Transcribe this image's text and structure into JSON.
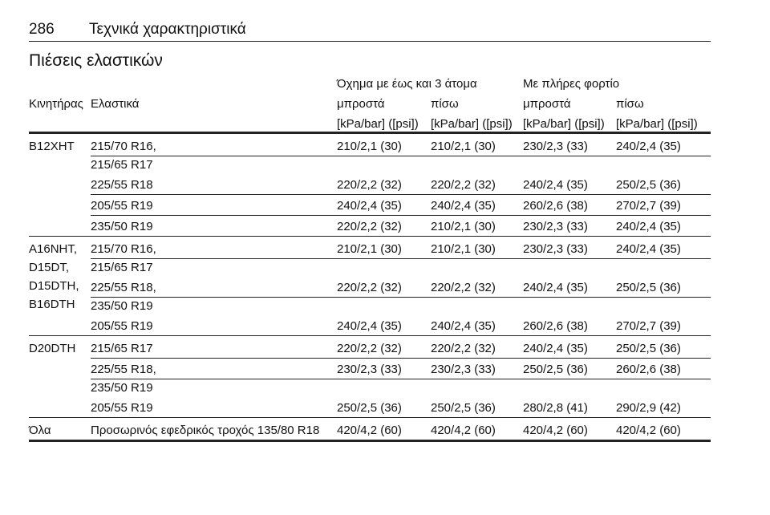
{
  "header": {
    "page": "286",
    "title": "Τεχνικά χαρακτηριστικά"
  },
  "section_title": "Πιέσεις ελαστικών",
  "table": {
    "group_headers": [
      "Όχημα με έως και 3 άτομα",
      "Με πλήρες φορτίο"
    ],
    "columns": [
      "Κινητήρας",
      "Ελαστικά",
      "μπροστά",
      "πίσω",
      "μπροστά",
      "πίσω"
    ],
    "units": [
      "[kPa/bar] ([psi])",
      "[kPa/bar] ([psi])",
      "[kPa/bar] ([psi])",
      "[kPa/bar] ([psi])"
    ],
    "groups": [
      {
        "engine": [
          "B12XHT"
        ],
        "rows": [
          {
            "tire": [
              "215/70 R16,",
              "215/65 R17"
            ],
            "values": [
              "210/2,1 (30)",
              "210/2,1 (30)",
              "230/2,3 (33)",
              "240/2,4 (35)"
            ]
          },
          {
            "tire": [
              "225/55 R18"
            ],
            "values": [
              "220/2,2 (32)",
              "220/2,2 (32)",
              "240/2,4 (35)",
              "250/2,5 (36)"
            ]
          },
          {
            "tire": [
              "205/55 R19"
            ],
            "values": [
              "240/2,4 (35)",
              "240/2,4 (35)",
              "260/2,6 (38)",
              "270/2,7 (39)"
            ]
          },
          {
            "tire": [
              "235/50 R19"
            ],
            "values": [
              "220/2,2 (32)",
              "210/2,1 (30)",
              "230/2,3 (33)",
              "240/2,4 (35)"
            ]
          }
        ]
      },
      {
        "engine": [
          "A16NHT,",
          "D15DT,",
          "D15DTH,",
          "B16DTH"
        ],
        "rows": [
          {
            "tire": [
              "215/70 R16,",
              "215/65 R17"
            ],
            "values": [
              "210/2,1 (30)",
              "210/2,1 (30)",
              "230/2,3 (33)",
              "240/2,4 (35)"
            ]
          },
          {
            "tire": [
              "225/55 R18,",
              "235/50 R19"
            ],
            "values": [
              "220/2,2 (32)",
              "220/2,2 (32)",
              "240/2,4 (35)",
              "250/2,5 (36)"
            ]
          },
          {
            "tire": [
              "205/55 R19"
            ],
            "values": [
              "240/2,4 (35)",
              "240/2,4 (35)",
              "260/2,6 (38)",
              "270/2,7 (39)"
            ]
          }
        ]
      },
      {
        "engine": [
          "D20DTH"
        ],
        "rows": [
          {
            "tire": [
              "215/65 R17"
            ],
            "values": [
              "220/2,2 (32)",
              "220/2,2 (32)",
              "240/2,4 (35)",
              "250/2,5 (36)"
            ]
          },
          {
            "tire": [
              "225/55 R18,",
              "235/50 R19"
            ],
            "values": [
              "230/2,3 (33)",
              "230/2,3 (33)",
              "250/2,5 (36)",
              "260/2,6 (38)"
            ]
          },
          {
            "tire": [
              "205/55 R19"
            ],
            "values": [
              "250/2,5 (36)",
              "250/2,5 (36)",
              "280/2,8 (41)",
              "290/2,9 (42)"
            ]
          }
        ]
      },
      {
        "engine": [
          "Όλα"
        ],
        "rows": [
          {
            "tire": [
              "Προσωρινός εφεδρικός τροχός 135/80 R18"
            ],
            "values": [
              "420/4,2 (60)",
              "420/4,2 (60)",
              "420/4,2 (60)",
              "420/4,2 (60)"
            ]
          }
        ]
      }
    ]
  }
}
